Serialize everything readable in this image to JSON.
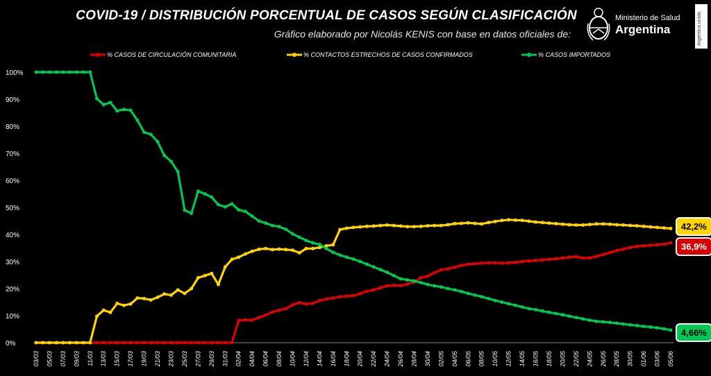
{
  "header": {
    "title": "COVID-19  /  DISTRIBUCIÓN PORCENTUAL DE CASOS SEGÚN CLASIFICACIÓN",
    "subtitle": "Gráfico elaborado por Nicolás KENIS con base en datos oficiales de:",
    "logo_line1": "Ministerio de Salud",
    "logo_line2": "Argentina",
    "side_tag": "Argentina unida"
  },
  "badges": {
    "contactos": "42,2%",
    "comunitaria": "36,9%",
    "importados": "4,66%"
  },
  "chart_data": {
    "type": "line",
    "ylim": [
      0,
      100
    ],
    "grid": false,
    "legend_position": "top",
    "y_ticks": [
      "0%",
      "10%",
      "20%",
      "30%",
      "40%",
      "50%",
      "60%",
      "70%",
      "80%",
      "90%",
      "100%"
    ],
    "x": [
      "03/03",
      "04/03",
      "05/03",
      "06/03",
      "07/03",
      "08/03",
      "09/03",
      "10/03",
      "11/03",
      "12/03",
      "13/03",
      "14/03",
      "15/03",
      "16/03",
      "17/03",
      "18/03",
      "19/03",
      "20/03",
      "21/03",
      "22/03",
      "23/03",
      "24/03",
      "25/03",
      "26/03",
      "27/03",
      "28/03",
      "29/03",
      "30/03",
      "31/03",
      "01/04",
      "02/04",
      "03/04",
      "04/04",
      "05/04",
      "06/04",
      "07/04",
      "08/04",
      "09/04",
      "10/04",
      "11/04",
      "12/04",
      "13/04",
      "14/04",
      "15/04",
      "16/04",
      "17/04",
      "18/04",
      "19/04",
      "20/04",
      "21/04",
      "22/04",
      "23/04",
      "24/04",
      "25/04",
      "26/04",
      "27/04",
      "28/04",
      "29/04",
      "30/04",
      "01/05",
      "02/05",
      "03/05",
      "04/05",
      "05/05",
      "06/05",
      "07/05",
      "08/05",
      "09/05",
      "10/05",
      "11/05",
      "12/05",
      "13/05",
      "14/05",
      "15/05",
      "16/05",
      "17/05",
      "18/05",
      "19/05",
      "20/05",
      "21/05",
      "22/05",
      "23/05",
      "24/05",
      "25/05",
      "26/05",
      "27/05",
      "28/05",
      "29/05",
      "30/05",
      "31/05",
      "01/06",
      "02/06",
      "03/06",
      "04/06",
      "05/06"
    ],
    "x_ticks": [
      "03/03",
      "05/03",
      "07/03",
      "09/03",
      "11/03",
      "13/03",
      "15/03",
      "17/03",
      "19/03",
      "21/03",
      "23/03",
      "25/03",
      "27/03",
      "29/03",
      "31/03",
      "02/04",
      "04/04",
      "06/04",
      "08/04",
      "10/04",
      "12/04",
      "14/04",
      "16/04",
      "18/04",
      "20/04",
      "22/04",
      "24/04",
      "26/04",
      "28/04",
      "30/04",
      "02/05",
      "04/05",
      "06/05",
      "08/05",
      "10/05",
      "12/05",
      "14/05",
      "16/05",
      "18/05",
      "20/05",
      "22/05",
      "24/05",
      "26/05",
      "28/05",
      "30/05",
      "01/06",
      "03/06",
      "05/06"
    ],
    "series": [
      {
        "name": "% CASOS DE CIRCULACIÓN COMUNITARIA",
        "color": "#e00000",
        "values": [
          0,
          0,
          0,
          0,
          0,
          0,
          0,
          0,
          0,
          0,
          0,
          0,
          0,
          0,
          0,
          0,
          0,
          0,
          0,
          0,
          0,
          0,
          0,
          0,
          0,
          0,
          0,
          0,
          0,
          0,
          8.2,
          8.4,
          8.3,
          9.3,
          10.2,
          11.3,
          12.0,
          12.6,
          14.0,
          14.8,
          14.3,
          14.6,
          15.6,
          16.1,
          16.5,
          17.0,
          17.2,
          17.4,
          18.1,
          19.0,
          19.5,
          20.3,
          21.0,
          21.2,
          21.1,
          21.7,
          22.4,
          24.0,
          24.6,
          25.9,
          26.9,
          27.3,
          27.9,
          28.6,
          29.0,
          29.2,
          29.4,
          29.5,
          29.5,
          29.4,
          29.5,
          29.7,
          30.0,
          30.2,
          30.4,
          30.6,
          30.8,
          31.0,
          31.3,
          31.6,
          31.8,
          31.3,
          31.3,
          31.9,
          32.6,
          33.3,
          34.0,
          34.6,
          35.2,
          35.6,
          35.8,
          36.0,
          36.2,
          36.4,
          36.9
        ]
      },
      {
        "name": "% CONTACTOS ESTRECHOS DE CASOS CONFIRMADOS",
        "color": "#ffd400",
        "values": [
          0,
          0,
          0,
          0,
          0,
          0,
          0,
          0,
          0,
          9.8,
          12.0,
          11.2,
          14.5,
          13.8,
          14.3,
          16.5,
          16.3,
          15.8,
          16.8,
          18.0,
          17.6,
          19.5,
          18.2,
          20.0,
          24.0,
          24.8,
          25.6,
          21.5,
          28.0,
          30.8,
          31.6,
          32.8,
          33.8,
          34.5,
          34.8,
          34.4,
          34.6,
          34.4,
          34.2,
          33.2,
          34.8,
          34.8,
          35.2,
          35.8,
          36.2,
          41.8,
          42.3,
          42.6,
          42.8,
          43.0,
          43.1,
          43.3,
          43.5,
          43.3,
          43.1,
          42.9,
          42.9,
          43.0,
          43.2,
          43.3,
          43.3,
          43.6,
          44.0,
          44.1,
          44.3,
          44.1,
          43.9,
          44.4,
          44.8,
          45.2,
          45.4,
          45.3,
          45.2,
          44.9,
          44.6,
          44.4,
          44.2,
          44.0,
          43.8,
          43.6,
          43.5,
          43.5,
          43.7,
          43.9,
          43.9,
          43.8,
          43.6,
          43.5,
          43.3,
          43.2,
          43.0,
          42.8,
          42.6,
          42.4,
          42.2
        ]
      },
      {
        "name": "% CASOS IMPORTADOS",
        "color": "#00c853",
        "values": [
          100,
          100,
          100,
          100,
          100,
          100,
          100,
          100,
          100,
          90.2,
          88.0,
          88.8,
          85.7,
          86.2,
          85.9,
          82.2,
          77.8,
          77.0,
          74.3,
          69.2,
          67.0,
          63.2,
          49.0,
          47.8,
          56.0,
          55.0,
          53.8,
          51.0,
          50.2,
          51.3,
          49.1,
          48.5,
          46.8,
          45.0,
          44.2,
          43.3,
          42.9,
          41.9,
          40.2,
          39.0,
          37.8,
          36.9,
          36.3,
          34.8,
          33.4,
          32.4,
          31.6,
          30.9,
          30.0,
          29.0,
          28.0,
          27.0,
          26.0,
          24.8,
          23.6,
          23.2,
          22.8,
          22.2,
          21.5,
          21.0,
          20.6,
          20.0,
          19.5,
          18.9,
          18.2,
          17.6,
          17.0,
          16.3,
          15.6,
          15.0,
          14.4,
          13.8,
          13.2,
          12.6,
          12.2,
          11.7,
          11.2,
          10.8,
          10.3,
          9.8,
          9.3,
          8.8,
          8.3,
          7.9,
          7.7,
          7.5,
          7.2,
          6.9,
          6.6,
          6.3,
          6.0,
          5.8,
          5.5,
          5.1,
          4.66
        ]
      }
    ]
  }
}
